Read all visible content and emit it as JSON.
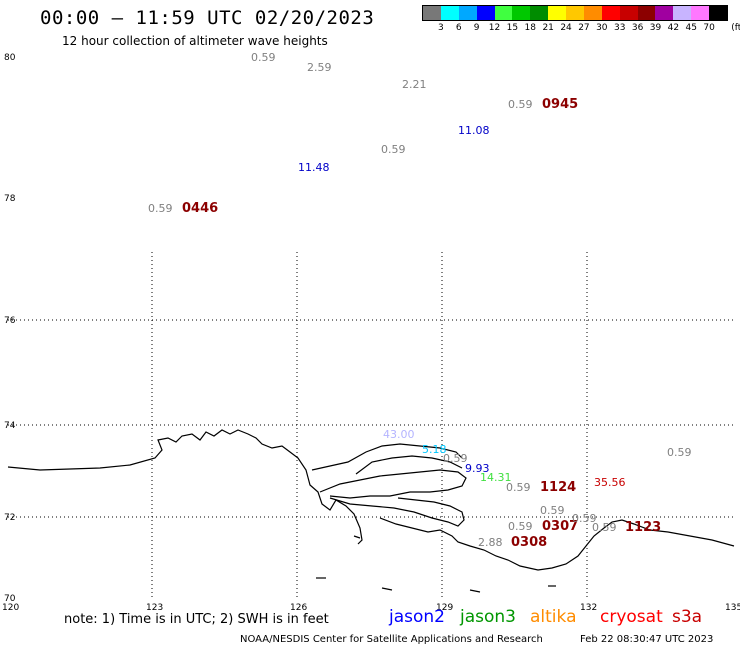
{
  "header": {
    "title": "00:00 – 11:59 UTC 02/20/2023",
    "subtitle": "12 hour collection of altimeter wave heights"
  },
  "colorbar": {
    "unit": "(ft)",
    "swatches": [
      {
        "color": "#787878",
        "label": "3"
      },
      {
        "color": "#00ffff",
        "label": "6"
      },
      {
        "color": "#00a8ff",
        "label": "9"
      },
      {
        "color": "#0000ff",
        "label": "12"
      },
      {
        "color": "#40ff40",
        "label": "15"
      },
      {
        "color": "#00c800",
        "label": "18"
      },
      {
        "color": "#008c00",
        "label": "21"
      },
      {
        "color": "#ffff00",
        "label": "24"
      },
      {
        "color": "#ffc800",
        "label": "27"
      },
      {
        "color": "#ff8c00",
        "label": "30"
      },
      {
        "color": "#ff0000",
        "label": "33"
      },
      {
        "color": "#c80000",
        "label": "36"
      },
      {
        "color": "#8c0000",
        "label": "39"
      },
      {
        "color": "#a000a0",
        "label": "42"
      },
      {
        "color": "#c8b4ff",
        "label": "45"
      },
      {
        "color": "#ff78ff",
        "label": "70"
      },
      {
        "color": "#000000",
        "label": ""
      }
    ]
  },
  "axes": {
    "lat_labels": [
      "80",
      "78",
      "76",
      "74",
      "72",
      "70"
    ],
    "lon_labels": [
      "120",
      "123",
      "126",
      "129",
      "132",
      "135"
    ]
  },
  "observations": [
    {
      "text": "0.59",
      "color": "#808080"
    },
    {
      "text": "2.59",
      "color": "#808080"
    },
    {
      "text": "2.21",
      "color": "#808080"
    },
    {
      "text": "0.59",
      "color": "#808080"
    },
    {
      "text": "0945",
      "color": "#8c0000"
    },
    {
      "text": "11.08",
      "color": "#0000c8"
    },
    {
      "text": "0.59",
      "color": "#808080"
    },
    {
      "text": "11.48",
      "color": "#0000c8"
    },
    {
      "text": "0.59",
      "color": "#808080"
    },
    {
      "text": "0446",
      "color": "#8c0000"
    },
    {
      "text": "43.00",
      "color": "#b4b4ff"
    },
    {
      "text": "5.18",
      "color": "#00c8ff"
    },
    {
      "text": "0.59",
      "color": "#808080"
    },
    {
      "text": "9.93",
      "color": "#0000c8"
    },
    {
      "text": "14.31",
      "color": "#40e040"
    },
    {
      "text": "0.59",
      "color": "#808080"
    },
    {
      "text": "1124",
      "color": "#8c0000"
    },
    {
      "text": "35.56",
      "color": "#c80000"
    },
    {
      "text": "0.59",
      "color": "#808080"
    },
    {
      "text": "0.59",
      "color": "#808080"
    },
    {
      "text": "0.59",
      "color": "#808080"
    },
    {
      "text": "0307",
      "color": "#8c0000"
    },
    {
      "text": "0.59",
      "color": "#808080"
    },
    {
      "text": "0.59",
      "color": "#808080"
    },
    {
      "text": "1123",
      "color": "#8c0000"
    },
    {
      "text": "2.88",
      "color": "#808080"
    },
    {
      "text": "0308",
      "color": "#8c0000"
    }
  ],
  "footer": {
    "note": "note: 1) Time is in UTC; 2) SWH is in feet",
    "legend": [
      {
        "name": "jason2",
        "color": "#0000ff"
      },
      {
        "name": "jason3",
        "color": "#009600"
      },
      {
        "name": "altika",
        "color": "#ff8c00"
      },
      {
        "name": "cryosat",
        "color": "#ff0000"
      },
      {
        "name": "s3a",
        "color": "#c80000"
      }
    ],
    "credit": "NOAA/NESDIS Center for Satellite Applications and Research",
    "timestamp": "Feb 22 08:30:47 UTC 2023"
  }
}
